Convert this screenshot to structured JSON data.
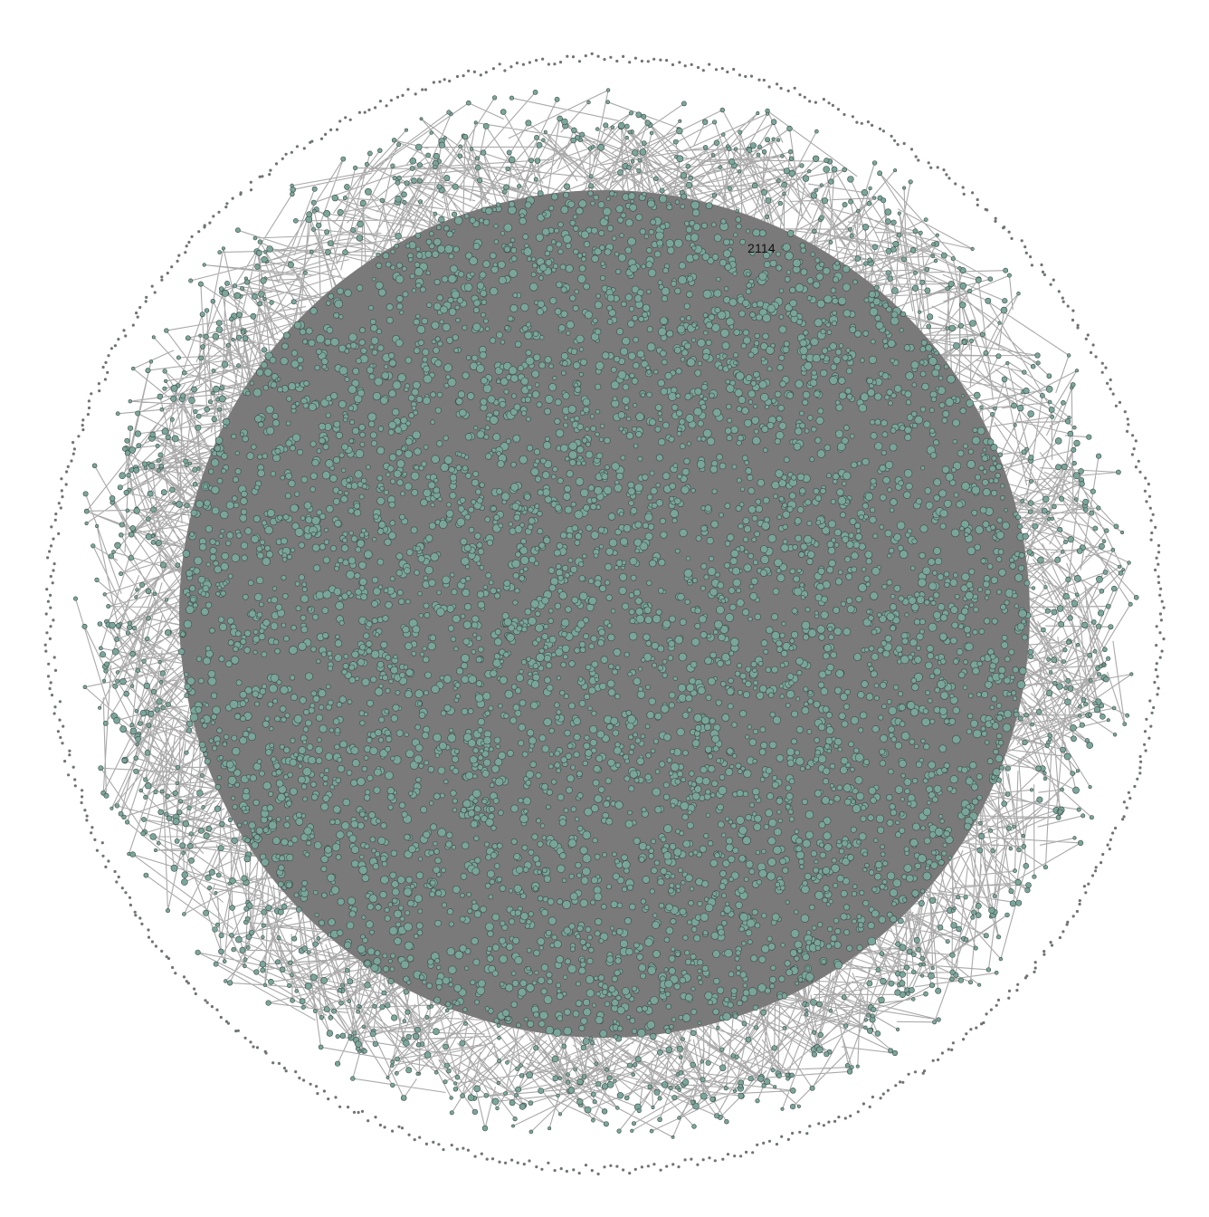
{
  "graph": {
    "highlighted_node_label": "2114",
    "colors": {
      "background": "#ffffff",
      "node_fill": "#7aa69a",
      "node_stroke": "#3f4a47",
      "edge": "#a9a9a9",
      "core_shadow": "#7a7a7a",
      "isolated_node": "#6f7471"
    }
  }
}
